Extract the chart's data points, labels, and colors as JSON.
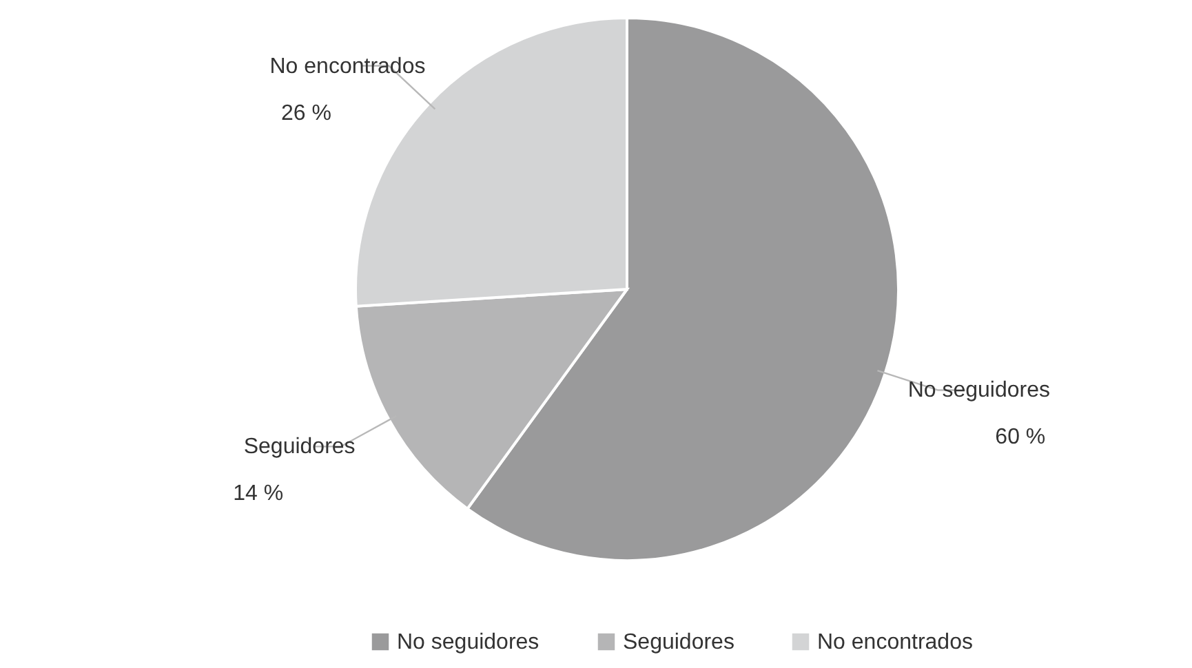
{
  "chart_data": {
    "type": "pie",
    "categories": [
      "No seguidores",
      "Seguidores",
      "No encontrados"
    ],
    "values": [
      60,
      14,
      26
    ],
    "colors": [
      "#9a9a9b",
      "#b5b5b6",
      "#d3d4d5"
    ],
    "value_labels": [
      "60 %",
      "14 %",
      "26 %"
    ],
    "legend": "bottom"
  }
}
